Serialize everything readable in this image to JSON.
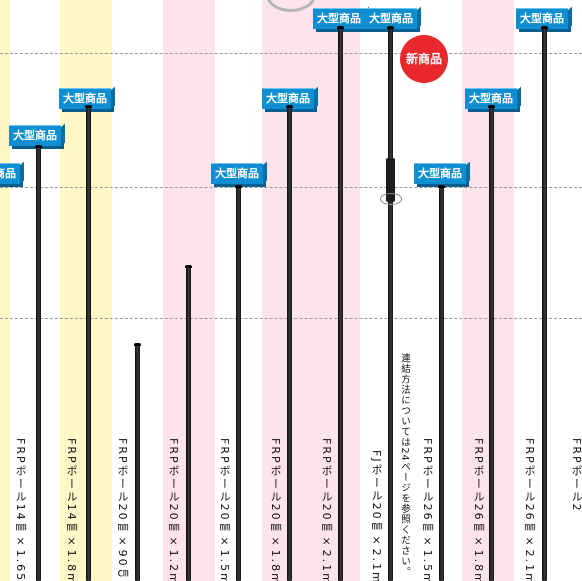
{
  "colors": {
    "band_yellow": "#fff7c8",
    "band_pink": "#fde4ea",
    "badge_blue": "#0f8fd1",
    "new_red": "#e8282d"
  },
  "badge_text": "大型商品",
  "new_badge_text": "新商品",
  "poles": [
    {
      "label": "FRPポール14㎜×1.65",
      "badge": true
    },
    {
      "label": "FRPポール14㎜×1.8m",
      "badge": true
    },
    {
      "label": "FRPポール20㎜×90㎝",
      "badge": false
    },
    {
      "label": "FRPポール20㎜×1.2m",
      "badge": false
    },
    {
      "label": "FRPポール20㎜×1.5m",
      "badge": true
    },
    {
      "label": "FRPポール20㎜×1.8m",
      "badge": true
    },
    {
      "label": "FRPポール20㎜×2.1m",
      "badge": true
    },
    {
      "label": "FJポール20㎜×2.1m",
      "badge": true,
      "new": true
    },
    {
      "label": "FRPポール26㎜×1.5m",
      "badge": true
    },
    {
      "label": "FRPポール26㎜×1.8m",
      "badge": true
    },
    {
      "label": "FRPポール26㎜×2.1m",
      "badge": true
    },
    {
      "label": "FRPポール2",
      "badge": false
    }
  ],
  "connection_note": "連結方法については24ページを参照ください。"
}
